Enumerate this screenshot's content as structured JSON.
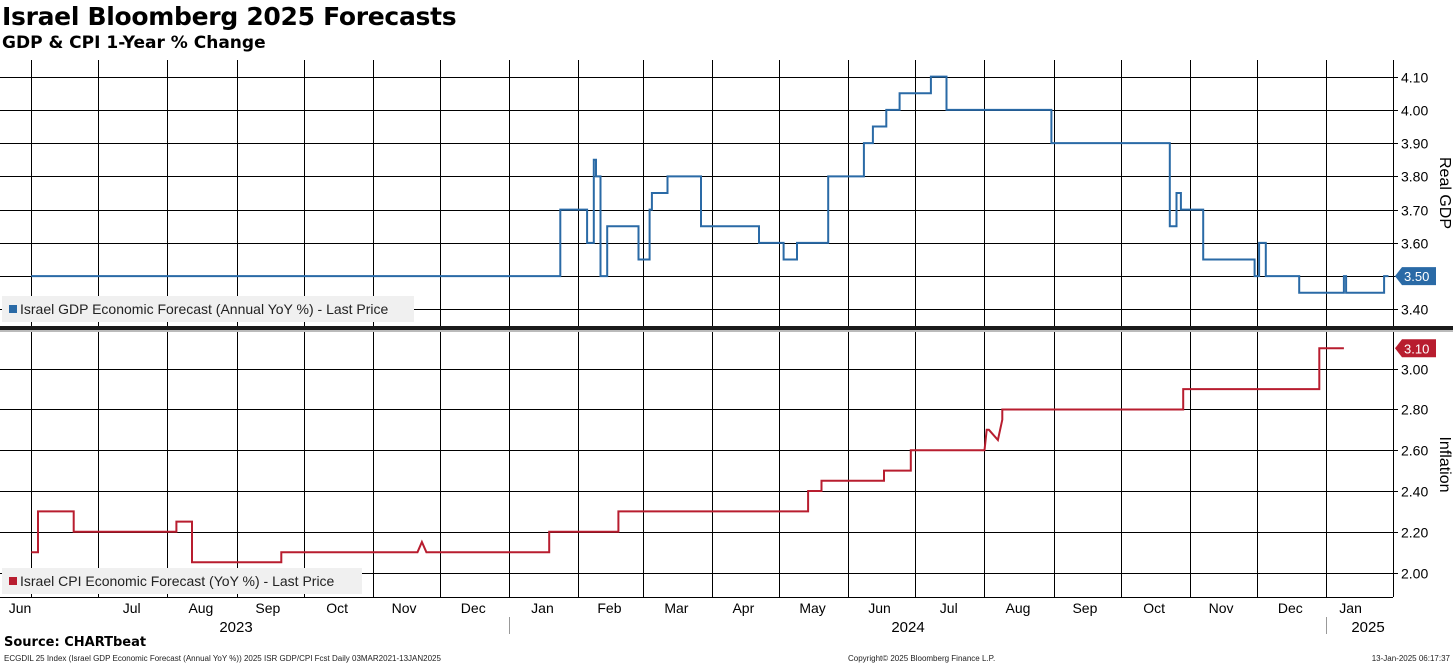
{
  "header": {
    "title": "Israel Bloomberg 2025 Forecasts",
    "subtitle": "GDP & CPI 1-Year % Change"
  },
  "footer": {
    "source": "Source: CHARTbeat",
    "left_note": "ECGDIL 25 Index (Israel GDP Economic Forecast (Annual YoY %)) 2025 ISR GDP/CPI Fcst  Daily 03MAR2021-13JAN2025",
    "copyright": "Copyright© 2025 Bloomberg Finance L.P.",
    "timestamp": "13-Jan-2025 06:17:37"
  },
  "colors": {
    "gdp": "#2a6aa6",
    "cpi": "#b81d2f"
  },
  "x_axis": {
    "months": [
      "Jun",
      "Jul",
      "Aug",
      "Sep",
      "Oct",
      "Nov",
      "Dec",
      "Jan",
      "Feb",
      "Mar",
      "Apr",
      "May",
      "Jun",
      "Jul",
      "Aug",
      "Sep",
      "Oct",
      "Nov",
      "Dec",
      "Jan"
    ],
    "years": [
      "2023",
      "2024",
      "2025"
    ]
  },
  "chart_data": [
    {
      "type": "line",
      "axis_label": "Real GDP",
      "legend": "Israel GDP Economic Forecast (Annual YoY %) - Last Price",
      "legend_position": "bottom-left",
      "last_value_label": "3.50",
      "ylim": [
        3.35,
        4.15
      ],
      "yticks": [
        "3.40",
        "3.50",
        "3.60",
        "3.70",
        "3.80",
        "3.90",
        "4.00",
        "4.10"
      ],
      "grid": true,
      "series": [
        {
          "name": "Israel GDP Economic Forecast (Annual YoY %) - Last Price",
          "x": [
            "2023-06-01",
            "2024-01-24",
            "2024-01-24",
            "2024-02-05",
            "2024-02-05",
            "2024-02-08",
            "2024-02-08",
            "2024-02-09",
            "2024-02-09",
            "2024-02-11",
            "2024-02-11",
            "2024-02-14",
            "2024-02-14",
            "2024-02-28",
            "2024-02-28",
            "2024-03-04",
            "2024-03-04",
            "2024-03-05",
            "2024-03-05",
            "2024-03-12",
            "2024-03-12",
            "2024-03-27",
            "2024-03-27",
            "2024-04-22",
            "2024-04-22",
            "2024-05-03",
            "2024-05-03",
            "2024-05-09",
            "2024-05-09",
            "2024-05-23",
            "2024-05-23",
            "2024-06-08",
            "2024-06-08",
            "2024-06-12",
            "2024-06-12",
            "2024-06-18",
            "2024-06-18",
            "2024-06-24",
            "2024-06-24",
            "2024-07-08",
            "2024-07-08",
            "2024-07-15",
            "2024-07-15",
            "2024-08-31",
            "2024-08-31",
            "2024-10-23",
            "2024-10-23",
            "2024-10-26",
            "2024-10-26",
            "2024-10-28",
            "2024-10-28",
            "2024-11-07",
            "2024-11-07",
            "2024-11-30",
            "2024-11-30",
            "2024-12-02",
            "2024-12-02",
            "2024-12-05",
            "2024-12-05",
            "2024-12-20",
            "2024-12-20",
            "2025-01-09",
            "2025-01-09",
            "2025-01-10",
            "2025-01-10",
            "2025-01-27",
            "2025-01-27",
            "2025-01-29"
          ],
          "values": [
            3.5,
            3.5,
            3.7,
            3.7,
            3.6,
            3.6,
            3.85,
            3.85,
            3.8,
            3.8,
            3.5,
            3.5,
            3.65,
            3.65,
            3.55,
            3.55,
            3.7,
            3.7,
            3.75,
            3.75,
            3.8,
            3.8,
            3.65,
            3.65,
            3.6,
            3.6,
            3.55,
            3.55,
            3.6,
            3.6,
            3.8,
            3.8,
            3.9,
            3.9,
            3.95,
            3.95,
            4.0,
            4.0,
            4.05,
            4.05,
            4.1,
            4.1,
            4.0,
            4.0,
            3.9,
            3.9,
            3.65,
            3.65,
            3.75,
            3.75,
            3.7,
            3.7,
            3.55,
            3.55,
            3.5,
            3.5,
            3.6,
            3.6,
            3.5,
            3.5,
            3.45,
            3.45,
            3.5,
            3.5,
            3.45,
            3.45,
            3.5,
            3.5
          ]
        }
      ]
    },
    {
      "type": "line",
      "axis_label": "Inflation",
      "legend": "Israel CPI Economic Forecast (YoY %) - Last Price",
      "legend_position": "bottom-left",
      "last_value_label": "3.10",
      "ylim": [
        1.88,
        3.18
      ],
      "yticks": [
        "2.00",
        "2.20",
        "2.40",
        "2.60",
        "2.80",
        "3.00"
      ],
      "grid": true,
      "series": [
        {
          "name": "Israel CPI Economic Forecast (YoY %) - Last Price",
          "x": [
            "2023-06-01",
            "2023-06-04",
            "2023-06-04",
            "2023-06-20",
            "2023-06-20",
            "2023-08-05",
            "2023-08-05",
            "2023-08-12",
            "2023-08-12",
            "2023-08-14",
            "2023-08-14",
            "2023-09-21",
            "2023-09-21",
            "2023-11-21",
            "2023-11-23",
            "2023-11-25",
            "2023-12-01",
            "2024-01-19",
            "2024-01-19",
            "2024-02-19",
            "2024-02-19",
            "2024-05-14",
            "2024-05-14",
            "2024-05-20",
            "2024-05-20",
            "2024-06-17",
            "2024-06-17",
            "2024-06-29",
            "2024-06-29",
            "2024-08-01",
            "2024-08-02",
            "2024-08-03",
            "2024-08-07",
            "2024-08-09",
            "2024-08-09",
            "2024-10-29",
            "2024-10-29",
            "2024-12-29",
            "2024-12-29",
            "2025-01-09"
          ],
          "values": [
            2.1,
            2.1,
            2.3,
            2.3,
            2.2,
            2.2,
            2.25,
            2.25,
            2.05,
            2.05,
            2.05,
            2.05,
            2.1,
            2.1,
            2.15,
            2.1,
            2.1,
            2.1,
            2.2,
            2.2,
            2.3,
            2.3,
            2.4,
            2.4,
            2.45,
            2.45,
            2.5,
            2.5,
            2.6,
            2.6,
            2.7,
            2.7,
            2.65,
            2.75,
            2.8,
            2.8,
            2.9,
            2.9,
            3.1,
            3.1
          ]
        }
      ]
    }
  ]
}
